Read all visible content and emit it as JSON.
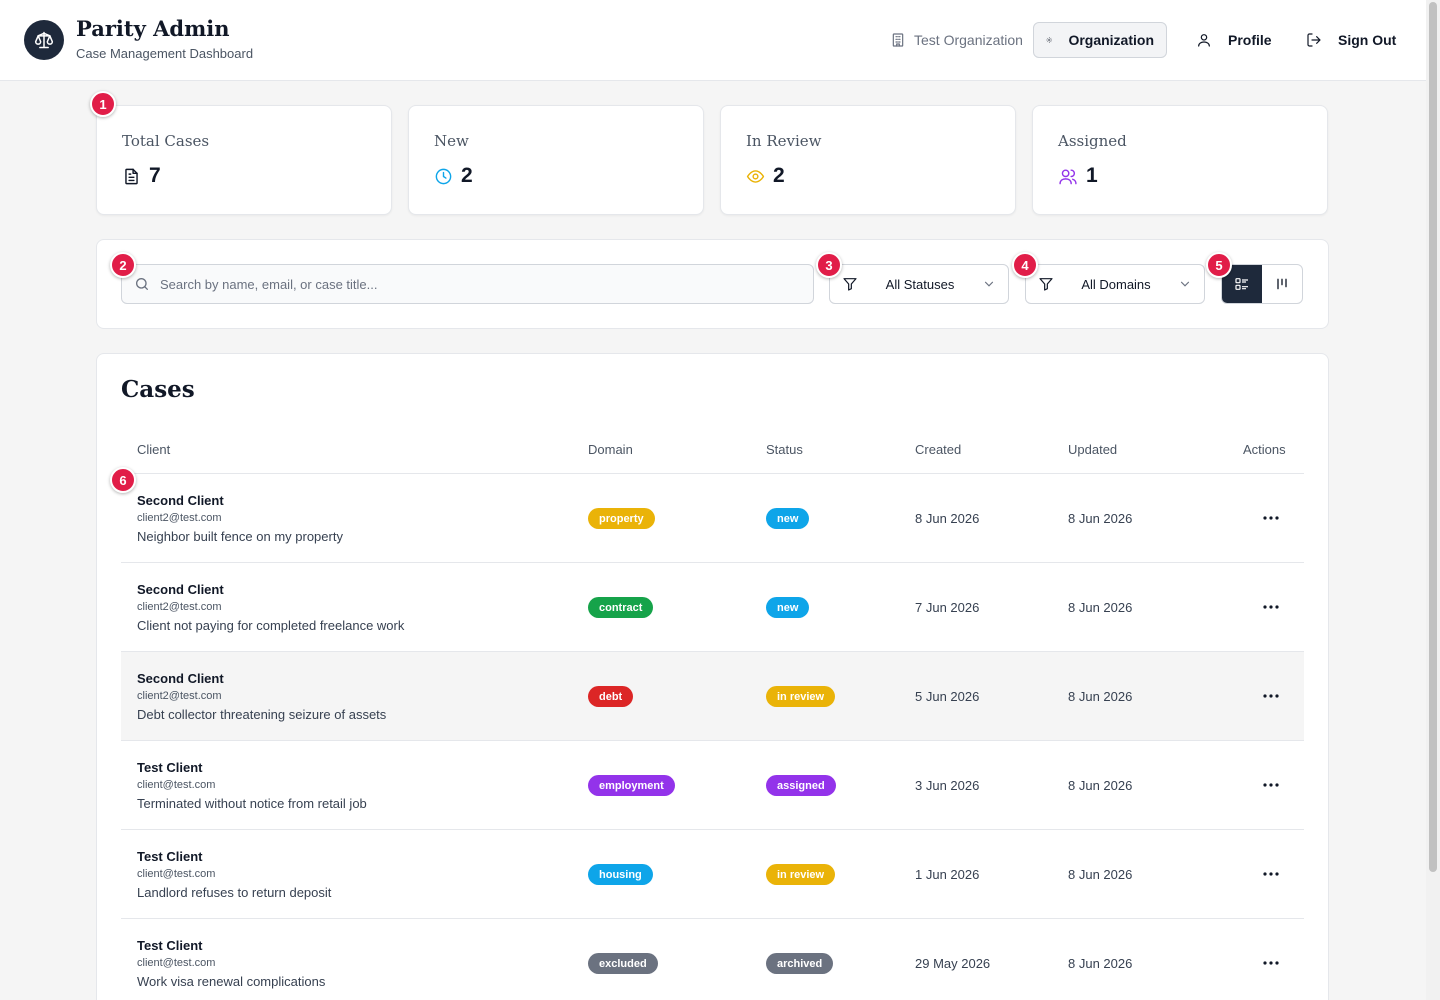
{
  "header": {
    "title": "Parity Admin",
    "subtitle": "Case Management Dashboard",
    "org_name": "Test Organization",
    "org_button": "Organization",
    "profile_button": "Profile",
    "signout_button": "Sign Out"
  },
  "stats": [
    {
      "label": "Total Cases",
      "value": "7",
      "icon": "document-icon",
      "color": "#111827"
    },
    {
      "label": "New",
      "value": "2",
      "icon": "clock-icon",
      "color": "#0ea5e9"
    },
    {
      "label": "In Review",
      "value": "2",
      "icon": "eye-icon",
      "color": "#eab308"
    },
    {
      "label": "Assigned",
      "value": "1",
      "icon": "users-icon",
      "color": "#9333ea"
    }
  ],
  "markers": [
    "1",
    "2",
    "3",
    "4",
    "5",
    "6"
  ],
  "filters": {
    "search_placeholder": "Search by name, email, or case title...",
    "status_select": "All Statuses",
    "domain_select": "All Domains",
    "view_modes": [
      "list-view-icon",
      "board-view-icon"
    ]
  },
  "cases": {
    "title": "Cases",
    "columns": [
      "Client",
      "Domain",
      "Status",
      "Created",
      "Updated",
      "Actions"
    ],
    "rows": [
      {
        "client": "Second Client",
        "email": "client2@test.com",
        "case_title": "Neighbor built fence on my property",
        "domain": "property",
        "status": "new",
        "created": "8 Jun 2026",
        "updated": "8 Jun 2026"
      },
      {
        "client": "Second Client",
        "email": "client2@test.com",
        "case_title": "Client not paying for completed freelance work",
        "domain": "contract",
        "status": "new",
        "created": "7 Jun 2026",
        "updated": "8 Jun 2026"
      },
      {
        "client": "Second Client",
        "email": "client2@test.com",
        "case_title": "Debt collector threatening seizure of assets",
        "domain": "debt",
        "status": "in review",
        "created": "5 Jun 2026",
        "updated": "8 Jun 2026"
      },
      {
        "client": "Test Client",
        "email": "client@test.com",
        "case_title": "Terminated without notice from retail job",
        "domain": "employment",
        "status": "assigned",
        "created": "3 Jun 2026",
        "updated": "8 Jun 2026"
      },
      {
        "client": "Test Client",
        "email": "client@test.com",
        "case_title": "Landlord refuses to return deposit",
        "domain": "housing",
        "status": "in review",
        "created": "1 Jun 2026",
        "updated": "8 Jun 2026"
      },
      {
        "client": "Test Client",
        "email": "client@test.com",
        "case_title": "Work visa renewal complications",
        "domain": "excluded",
        "status": "archived",
        "created": "29 May 2026",
        "updated": "8 Jun 2026"
      }
    ]
  },
  "colors": {
    "brand_dark": "#1e293b",
    "marker": "#e11d48",
    "domain": {
      "property": "#eab308",
      "contract": "#16a34a",
      "debt": "#dc2626",
      "employment": "#9333ea",
      "housing": "#0ea5e9",
      "excluded": "#6b7280"
    },
    "status": {
      "new": "#0ea5e9",
      "in review": "#eab308",
      "assigned": "#9333ea",
      "archived": "#6b7280"
    }
  }
}
